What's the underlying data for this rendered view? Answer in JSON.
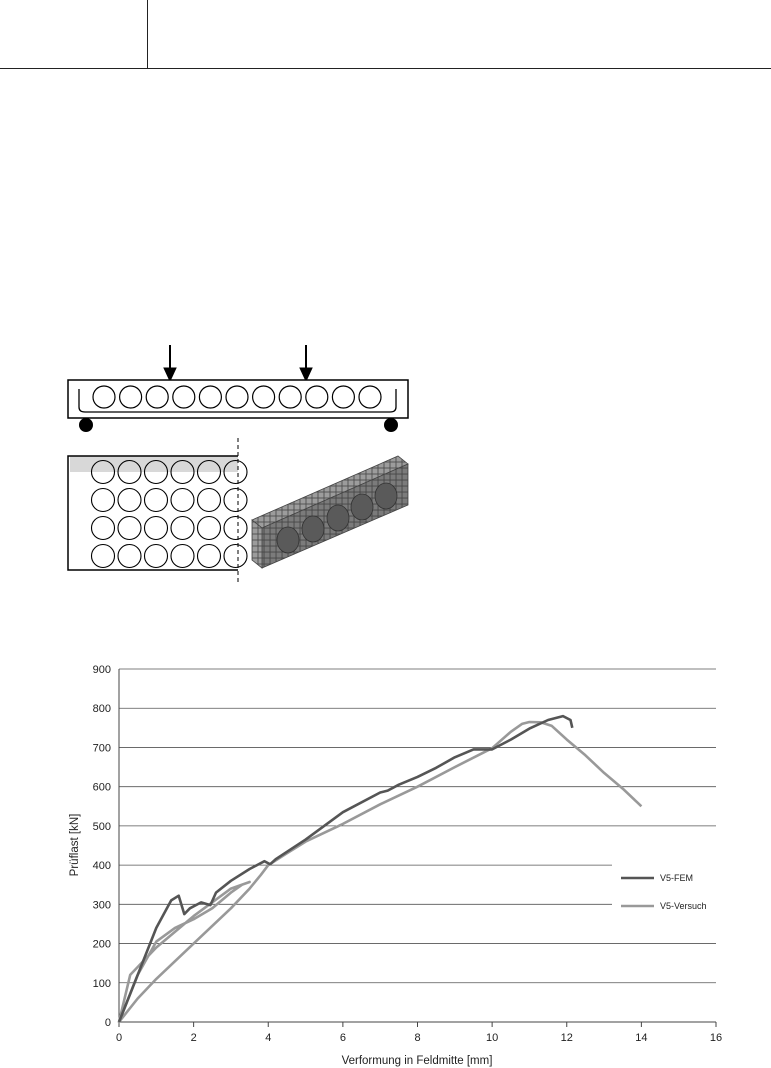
{
  "colors": {
    "fem": "#555555",
    "versuch": "#999999",
    "grid": "#555555"
  },
  "chart_data": {
    "type": "line",
    "title": "",
    "xlabel": "Verformung in Feldmitte [mm]",
    "ylabel": "Prüflast [kN]",
    "xlim": [
      0,
      16
    ],
    "ylim": [
      0,
      900
    ],
    "xticks": [
      "0",
      "2",
      "4",
      "6",
      "8",
      "10",
      "12",
      "14",
      "16"
    ],
    "yticks": [
      "0",
      "100",
      "200",
      "300",
      "400",
      "500",
      "600",
      "700",
      "800",
      "900"
    ],
    "grid": "horizontal",
    "legend": "right",
    "series": [
      {
        "name": "V5-FEM",
        "x": [
          0,
          0.5,
          1.0,
          1.4,
          1.6,
          1.75,
          1.9,
          2.2,
          2.45,
          2.6,
          3.0,
          3.5,
          3.9,
          4.05,
          4.2,
          5.0,
          6.0,
          7.0,
          7.2,
          7.5,
          8.0,
          8.5,
          9.0,
          9.5,
          10.0,
          10.5,
          11.0,
          11.5,
          11.9,
          12.1,
          12.15
        ],
        "y": [
          0,
          120,
          240,
          310,
          322,
          275,
          290,
          305,
          298,
          330,
          360,
          390,
          410,
          402,
          415,
          465,
          535,
          585,
          590,
          605,
          625,
          648,
          675,
          695,
          695,
          720,
          748,
          770,
          780,
          770,
          750
        ]
      },
      {
        "name": "V5-Versuch",
        "x": [
          0,
          0.5,
          1.0,
          1.5,
          2.0,
          2.5,
          3.0,
          3.3,
          3.5,
          3.0,
          2.0,
          1.0,
          0.3,
          0,
          0.5,
          1.0,
          2.0,
          3.0,
          3.5,
          3.8,
          4.0,
          4.5,
          5.0,
          6.0,
          7.0,
          8.0,
          9.0,
          10.0,
          10.5,
          10.8,
          11.0,
          11.3,
          11.6,
          12.0,
          12.5,
          13.0,
          13.5,
          14.0
        ],
        "y": [
          0,
          120,
          205,
          240,
          262,
          290,
          330,
          350,
          357,
          340,
          270,
          190,
          120,
          0,
          60,
          110,
          200,
          290,
          340,
          375,
          400,
          430,
          460,
          505,
          555,
          600,
          650,
          698,
          740,
          760,
          765,
          764,
          755,
          720,
          680,
          635,
          595,
          550
        ]
      }
    ]
  },
  "legend": {
    "fem": "V5-FEM",
    "versuch": "V5-Versuch"
  }
}
